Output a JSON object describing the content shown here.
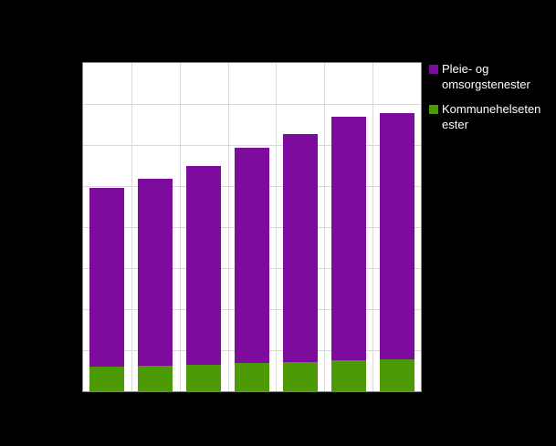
{
  "colors": {
    "background": "#000000",
    "plot_background": "#ffffff",
    "grid": "#d9d9d9",
    "plot_border": "#7f7f7f",
    "purple": "#7d0c9e",
    "green": "#4e9a06",
    "legend_text": "#ffffff"
  },
  "chart_data": {
    "type": "bar",
    "stacked": true,
    "title": "",
    "xlabel": "",
    "ylabel": "",
    "categories": [
      "",
      "",
      "",
      "",
      "",
      "",
      ""
    ],
    "series": [
      {
        "name": "Kommunehelsetenester",
        "color": "#4e9a06",
        "values": [
          0.6,
          0.63,
          0.65,
          0.68,
          0.72,
          0.75,
          0.78
        ]
      },
      {
        "name": "Pleie- og omsorgstenester",
        "color": "#7d0c9e",
        "values": [
          4.35,
          4.55,
          4.85,
          5.25,
          5.55,
          5.95,
          6.0
        ]
      }
    ],
    "ylim": [
      0,
      8
    ],
    "grid": true,
    "gridlines": {
      "horizontal": 8,
      "vertical": 7
    },
    "legend_position": "right",
    "legend": [
      {
        "label": "Pleie- og omsorgstenester",
        "color": "#7d0c9e"
      },
      {
        "label": "Kommunehelsetenester",
        "color": "#4e9a06"
      }
    ]
  }
}
